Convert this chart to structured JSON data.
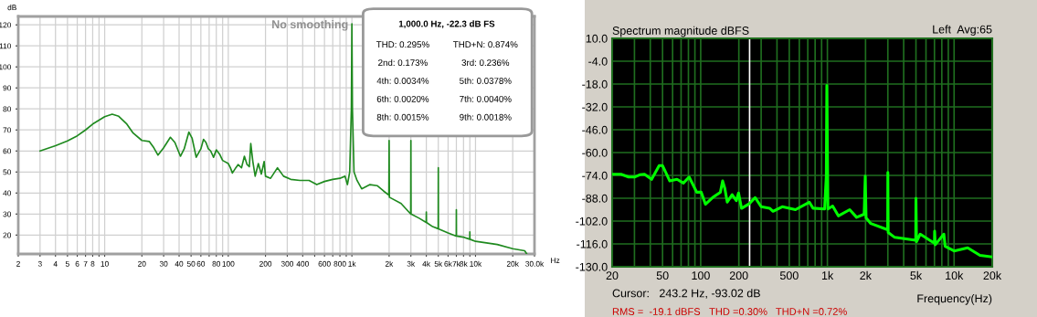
{
  "chart_data": [
    {
      "type": "line",
      "ylabel": "dB",
      "xlabel": "Hz",
      "log": "x",
      "grid": true,
      "marker": "none",
      "line_style": "solid",
      "annotations": [
        "No smoothing",
        "1,000.0 Hz, -22.3 dB FS",
        "THD: 0.295%",
        "THD+N: 0.874%",
        "2nd: 0.173%",
        "3rd: 0.236%",
        "4th: 0.0034%",
        "5th: 0.0378%",
        "6th: 0.0020%",
        "7th: 0.0040%",
        "8th: 0.0015%",
        "9th: 0.0018%"
      ],
      "xlim": [
        2,
        30000
      ],
      "ylim": [
        11,
        124
      ],
      "xticks": [
        2,
        3,
        4,
        5,
        6,
        7,
        8,
        {
          "value": 9,
          "label": null
        },
        10,
        20,
        30,
        40,
        50,
        60,
        {
          "value": 70,
          "label": null
        },
        80,
        {
          "value": 90,
          "label": null
        },
        100,
        200,
        300,
        400,
        {
          "value": 500,
          "label": null
        },
        600,
        {
          "value": 700,
          "label": null
        },
        800,
        {
          "value": 900,
          "label": null
        },
        {
          "value": 1000,
          "label": "1k"
        },
        {
          "value": 2000,
          "label": "2k"
        },
        {
          "value": 3000,
          "label": "3k"
        },
        {
          "value": 4000,
          "label": "4k"
        },
        {
          "value": 5000,
          "label": "5k"
        },
        {
          "value": 6000,
          "label": "6k"
        },
        {
          "value": 7000,
          "label": "7k"
        },
        {
          "value": 8000,
          "label": "8k"
        },
        {
          "value": 9000,
          "label": null
        },
        {
          "value": 10000,
          "label": "10k"
        },
        {
          "value": 20000,
          "label": "20k"
        },
        {
          "value": 30000,
          "label": "30.0k"
        }
      ],
      "yticks": [
        20,
        30,
        40,
        50,
        60,
        70,
        80,
        90,
        100,
        110,
        120
      ],
      "series": [
        {
          "color": "#1f8a1f",
          "x": [
            3,
            4,
            5,
            6,
            7,
            8,
            10,
            11.5,
            13,
            15,
            17,
            20,
            23,
            25,
            27,
            30,
            34,
            37,
            41,
            44,
            48,
            51,
            55,
            60,
            63,
            66,
            69,
            72,
            76,
            80,
            85,
            90,
            100,
            104,
            108,
            115,
            120,
            128,
            135,
            142,
            148,
            152,
            158,
            165,
            175,
            185,
            195,
            200,
            220,
            250,
            280,
            320,
            380,
            450,
            520,
            600,
            700,
            800,
            880,
            920,
            960,
            990,
            1000,
            1010,
            1040,
            1100,
            1200,
            1400,
            1600,
            1800,
            1990,
            2000,
            2010,
            2500,
            2990,
            3000,
            3010,
            3500,
            3990,
            4000,
            4010,
            4500,
            4990,
            5000,
            5010,
            6000,
            6990,
            7000,
            7010,
            8000,
            8990,
            9000,
            9010,
            10000,
            15000,
            20000,
            25000,
            26000
          ],
          "values": [
            60,
            62.5,
            64.8,
            67.2,
            70,
            72.8,
            76.3,
            77.5,
            76.5,
            73,
            68.5,
            65,
            64.5,
            61.5,
            58,
            61.5,
            66.5,
            64,
            57.5,
            61,
            69,
            66,
            57,
            61,
            65.5,
            64,
            61,
            60,
            57,
            60.5,
            58.5,
            55.5,
            54,
            52,
            49.5,
            52,
            53.5,
            52,
            57.5,
            53.5,
            52.5,
            63.5,
            55,
            48,
            54,
            49,
            55,
            48,
            47,
            52,
            48,
            46.5,
            46,
            46,
            44,
            45.5,
            46.5,
            47,
            48,
            44,
            50,
            80,
            120.5,
            80,
            50,
            46,
            42,
            44,
            43.5,
            41,
            39,
            65,
            38,
            35,
            30,
            65,
            30,
            28,
            26,
            31,
            26,
            24,
            23,
            52,
            23,
            21,
            19.5,
            32,
            19.5,
            19,
            18,
            21.5,
            18,
            17,
            15.5,
            13.5,
            12.5,
            11
          ]
        }
      ]
    },
    {
      "type": "line",
      "title": "Spectrum magnitude dBFS",
      "xlabel": "Frequency(Hz)",
      "log": "x",
      "grid": true,
      "marker": "none",
      "line_style": "solid",
      "annotations": [
        "Left  Avg:65",
        "Cursor:   243.2 Hz, -93.02 dB",
        "RMS =  -19.1 dBFS",
        "THD =0.30%",
        "THD+N =0.72%"
      ],
      "ref_lines": [
        {
          "axis": "x",
          "value": 243.2,
          "color": "#ffffff"
        }
      ],
      "xlim": [
        20,
        20000
      ],
      "ylim": [
        -130,
        10
      ],
      "xticks": [
        20,
        {
          "value": 30,
          "label": null
        },
        {
          "value": 40,
          "label": null
        },
        50,
        {
          "value": 60,
          "label": null
        },
        {
          "value": 70,
          "label": null
        },
        {
          "value": 80,
          "label": null
        },
        {
          "value": 90,
          "label": null
        },
        100,
        200,
        {
          "value": 300,
          "label": null
        },
        {
          "value": 400,
          "label": null
        },
        500,
        {
          "value": 600,
          "label": null
        },
        {
          "value": 700,
          "label": null
        },
        {
          "value": 800,
          "label": null
        },
        {
          "value": 900,
          "label": null
        },
        {
          "value": 1000,
          "label": "1k"
        },
        {
          "value": 2000,
          "label": "2k"
        },
        {
          "value": 3000,
          "label": null
        },
        {
          "value": 4000,
          "label": null
        },
        {
          "value": 5000,
          "label": "5k"
        },
        {
          "value": 6000,
          "label": null
        },
        {
          "value": 7000,
          "label": null
        },
        {
          "value": 8000,
          "label": null
        },
        {
          "value": 9000,
          "label": null
        },
        {
          "value": 10000,
          "label": "10k"
        },
        {
          "value": 20000,
          "label": "20k"
        }
      ],
      "yticks": [
        {
          "value": 10,
          "label": "10.0"
        },
        {
          "value": -4,
          "label": "-4.0"
        },
        {
          "value": -18,
          "label": "-18.0"
        },
        {
          "value": -32,
          "label": "-32.0"
        },
        {
          "value": -46,
          "label": "-46.0"
        },
        {
          "value": -60,
          "label": "-60.0"
        },
        {
          "value": -74,
          "label": "-74.0"
        },
        {
          "value": -88,
          "label": "-88.0"
        },
        {
          "value": -102,
          "label": "-102.0"
        },
        {
          "value": -116,
          "label": "-116.0"
        },
        {
          "value": -130,
          "label": "-130.0"
        }
      ],
      "series": [
        {
          "color": "#00ff00",
          "x": [
            20,
            23.5,
            27,
            30,
            33,
            36,
            41,
            47,
            50,
            57,
            65,
            73,
            81,
            93,
            101,
            109,
            124,
            143,
            149,
            155,
            162,
            177,
            191,
            199,
            210,
            241,
            269,
            300,
            350,
            372,
            440,
            560,
            720,
            770,
            950,
            980,
            990,
            1010,
            1100,
            1220,
            1500,
            1700,
            1950,
            1990,
            2020,
            2200,
            2990,
            3000,
            3020,
            3400,
            4980,
            5000,
            5050,
            5400,
            7000,
            7020,
            7100,
            8300,
            8500,
            10000,
            12800,
            16000,
            20000
          ],
          "values": [
            -73.3,
            -73.3,
            -75,
            -75,
            -73.6,
            -73.3,
            -76.4,
            -68,
            -68,
            -77.4,
            -76.4,
            -78.7,
            -75,
            -84.3,
            -84.3,
            -91.7,
            -87.6,
            -84.3,
            -77.4,
            -82,
            -90.4,
            -85.8,
            -89.5,
            -84.8,
            -94.2,
            -91.4,
            -87.6,
            -93.2,
            -94.1,
            -96,
            -93.2,
            -95,
            -90.4,
            -94.1,
            -94.6,
            -74.5,
            -18.9,
            -94.6,
            -92.8,
            -98.8,
            -95,
            -99.7,
            -97.8,
            -74.5,
            -100,
            -103.5,
            -107.3,
            -72.2,
            -109,
            -112,
            -113.8,
            -88,
            -114.7,
            -110,
            -115.6,
            -108.2,
            -116.5,
            -110,
            -117.5,
            -120.3,
            -118.4,
            -123,
            -124
          ]
        }
      ]
    }
  ]
}
